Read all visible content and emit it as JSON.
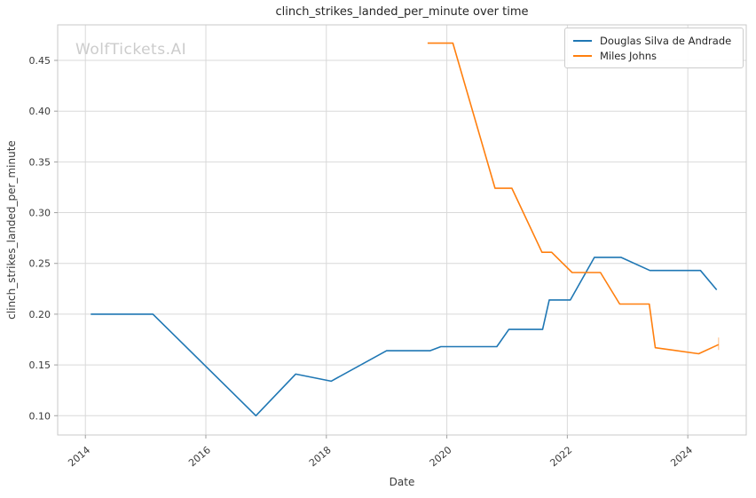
{
  "watermark": "WolfTickets.AI",
  "chart_data": {
    "type": "line",
    "title": "clinch_strikes_landed_per_minute over time",
    "xlabel": "Date",
    "ylabel": "clinch_strikes_landed_per_minute",
    "xlim": [
      2013.54,
      2024.97
    ],
    "ylim": [
      0.081,
      0.485
    ],
    "x_ticks": [
      2014,
      2016,
      2018,
      2020,
      2022,
      2024
    ],
    "y_ticks": [
      0.1,
      0.15,
      0.2,
      0.25,
      0.3,
      0.35,
      0.4,
      0.45
    ],
    "grid": true,
    "legend_position": "upper right",
    "colors": {
      "grid": "#d9d9d9",
      "spine": "#c9c9c9",
      "tick": "#a0a0a0",
      "text": "#262626",
      "tick_text": "#3a3a3a",
      "watermark": "#cccccc",
      "background": "#ffffff"
    },
    "series": [
      {
        "name": "Douglas Silva de Andrade",
        "color": "#1f77b4",
        "x": [
          2014.09,
          2015.12,
          2016.83,
          2017.49,
          2018.08,
          2019.0,
          2019.72,
          2019.9,
          2020.83,
          2021.03,
          2021.59,
          2021.7,
          2022.05,
          2022.45,
          2022.89,
          2023.37,
          2024.21,
          2024.48
        ],
        "y": [
          0.2,
          0.2,
          0.1,
          0.141,
          0.134,
          0.164,
          0.164,
          0.168,
          0.168,
          0.185,
          0.185,
          0.214,
          0.214,
          0.256,
          0.256,
          0.243,
          0.243,
          0.224
        ],
        "end_tick": false
      },
      {
        "name": "Miles Johns",
        "color": "#ff7f0e",
        "x": [
          2019.68,
          2020.1,
          2020.8,
          2021.08,
          2021.58,
          2021.74,
          2022.08,
          2022.55,
          2022.87,
          2023.36,
          2023.46,
          2024.18,
          2024.51
        ],
        "y": [
          0.467,
          0.467,
          0.324,
          0.324,
          0.261,
          0.261,
          0.241,
          0.241,
          0.21,
          0.21,
          0.167,
          0.161,
          0.17
        ],
        "end_tick": true
      }
    ]
  }
}
